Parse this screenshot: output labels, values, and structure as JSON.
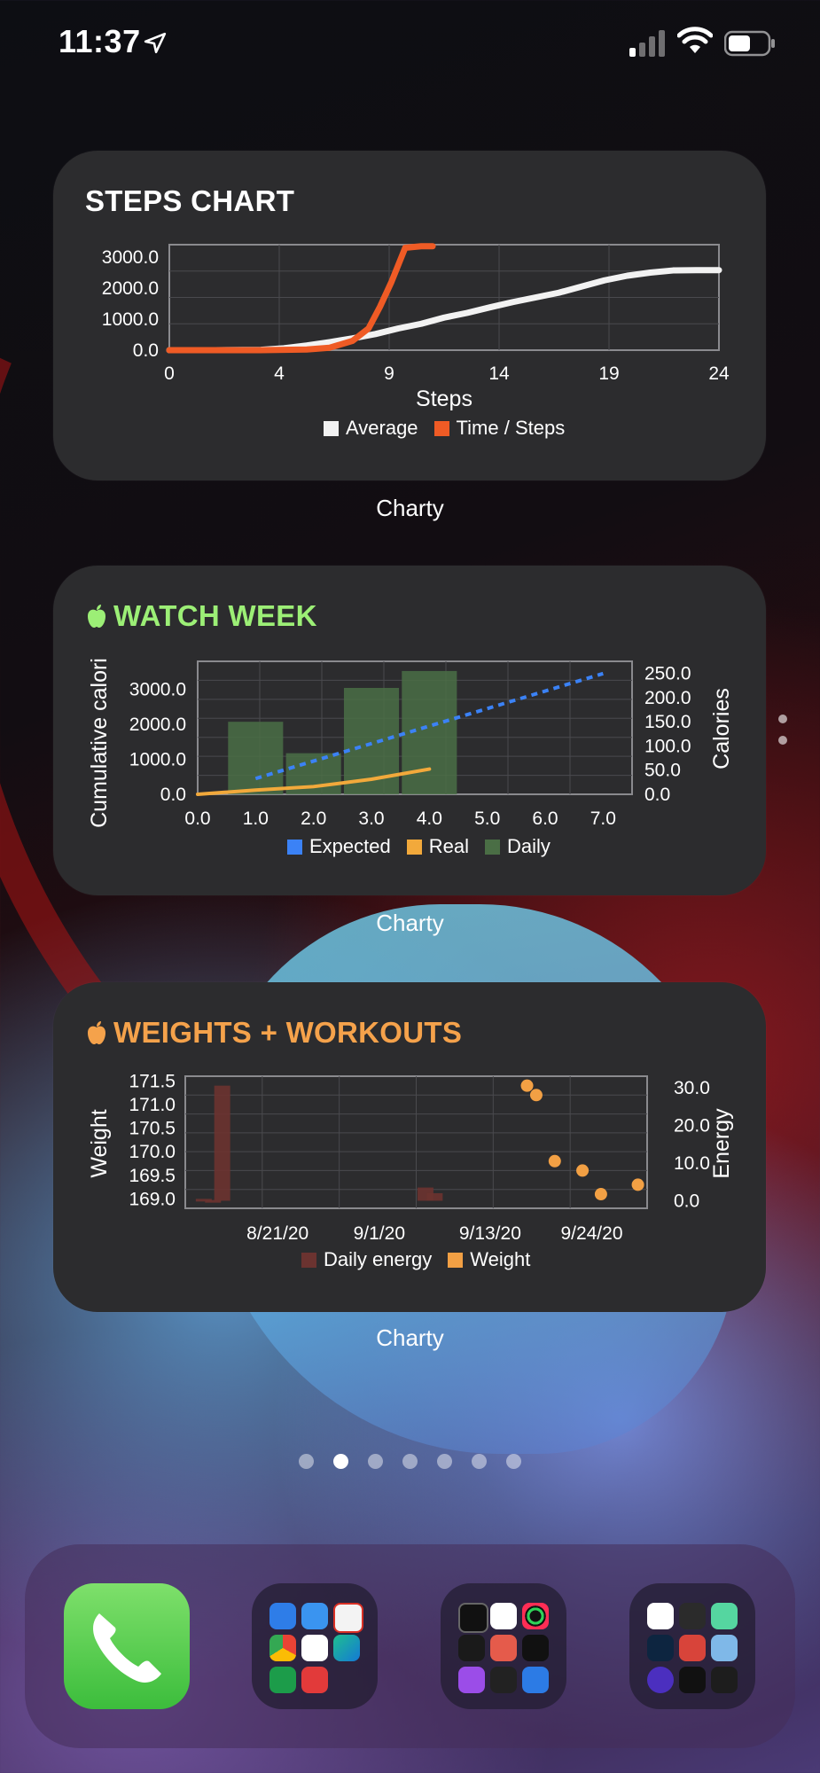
{
  "status_bar": {
    "time": "11:37"
  },
  "widgets": [
    {
      "title": "STEPS CHART",
      "app_label": "Charty",
      "title_color": "#ffffff"
    },
    {
      "title": "WATCH WEEK",
      "app_label": "Charty",
      "title_color": "#9cef76"
    },
    {
      "title": "WEIGHTS + WORKOUTS",
      "app_label": "Charty",
      "title_color": "#f5a24b"
    }
  ],
  "chart_data": [
    {
      "type": "line",
      "xlabel": "Steps",
      "ylabel": "",
      "xlim": [
        0,
        24
      ],
      "ylim": [
        0,
        3400
      ],
      "xticks": [
        "0",
        "4",
        "9",
        "14",
        "19",
        "24"
      ],
      "yticks": [
        "3000.0",
        "2000.0",
        "1000.0",
        "0.0"
      ],
      "grid": true,
      "legend_position": "bottom",
      "series": [
        {
          "name": "Average",
          "color": "#f2f2f2",
          "x": [
            0,
            2,
            4,
            5,
            6,
            7,
            8,
            9,
            10,
            11,
            12,
            13,
            14,
            15,
            16,
            17,
            18,
            19,
            20,
            21,
            22,
            23,
            24
          ],
          "y": [
            0,
            0,
            10,
            60,
            150,
            260,
            380,
            520,
            700,
            850,
            1050,
            1200,
            1380,
            1550,
            1700,
            1850,
            2050,
            2250,
            2400,
            2500,
            2570,
            2580,
            2580
          ]
        },
        {
          "name": "Time / Steps",
          "color": "#ef5b25",
          "x": [
            0,
            2,
            4,
            6,
            7,
            8,
            8.7,
            9.2,
            9.7,
            10.3,
            11,
            11.5
          ],
          "y": [
            0,
            0,
            0,
            20,
            80,
            300,
            700,
            1400,
            2200,
            3300,
            3350,
            3350
          ]
        }
      ]
    },
    {
      "type": "bar",
      "title": "",
      "xlabel": "",
      "ylabel": "Cumulative calori",
      "y2label": "Calories",
      "xlim": [
        0,
        7.5
      ],
      "ylim": [
        0,
        3800
      ],
      "y2lim": [
        0,
        275
      ],
      "xticks": [
        "0.0",
        "1.0",
        "2.0",
        "3.0",
        "4.0",
        "5.0",
        "6.0",
        "7.0"
      ],
      "yticks": [
        "3000.0",
        "2000.0",
        "1000.0",
        "0.0"
      ],
      "y2ticks": [
        "250.0",
        "200.0",
        "150.0",
        "100.0",
        "50.0",
        "0.0"
      ],
      "grid": true,
      "legend_position": "bottom",
      "series": [
        {
          "name": "Expected",
          "type": "line-dashed",
          "color": "#3b82f6",
          "axis": "left",
          "x": [
            1,
            7
          ],
          "y": [
            450,
            3450
          ]
        },
        {
          "name": "Real",
          "type": "line",
          "color": "#f2a93b",
          "axis": "left",
          "x": [
            0,
            1,
            2,
            3,
            4
          ],
          "y": [
            0,
            120,
            220,
            430,
            720
          ]
        },
        {
          "name": "Daily",
          "type": "bar",
          "color": "#4a6e45",
          "axis": "right",
          "x": [
            1,
            2,
            3,
            4
          ],
          "y": [
            150,
            85,
            220,
            255
          ]
        }
      ]
    },
    {
      "type": "scatter",
      "title": "",
      "xlabel": "",
      "ylabel": "Weight",
      "y2label": "Energy",
      "xticks": [
        "8/21/20",
        "9/1/20",
        "9/13/20",
        "9/24/20"
      ],
      "yticks": [
        "171.5",
        "171.0",
        "170.5",
        "170.0",
        "169.5",
        "169.0"
      ],
      "y2ticks": [
        "30.0",
        "20.0",
        "10.0",
        "0.0"
      ],
      "ylim": [
        168.8,
        171.6
      ],
      "y2lim": [
        -2,
        33
      ],
      "grid": true,
      "legend_position": "bottom",
      "series": [
        {
          "name": "Daily energy",
          "type": "bar",
          "color": "#6b3330",
          "axis": "right",
          "x": [
            "8/13/20",
            "8/14/20",
            "8/15/20",
            "9/6/20",
            "9/7/20"
          ],
          "y": [
            0.5,
            0.2,
            30.5,
            3.5,
            2.0
          ]
        },
        {
          "name": "Weight",
          "type": "scatter",
          "color": "#f2a044",
          "axis": "left",
          "x": [
            "9/17/20",
            "9/18/20",
            "9/20/20",
            "9/23/20",
            "9/25/20",
            "9/29/20"
          ],
          "y": [
            171.4,
            171.2,
            169.8,
            169.6,
            169.1,
            169.3
          ]
        }
      ]
    }
  ]
}
